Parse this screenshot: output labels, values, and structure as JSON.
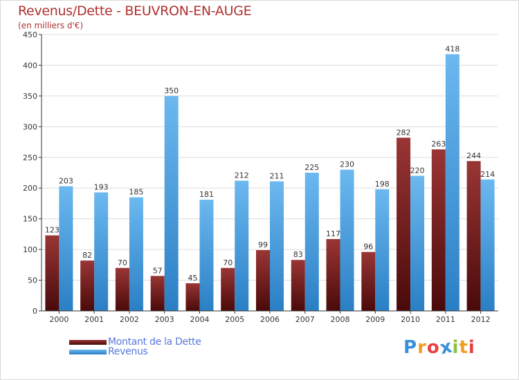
{
  "chart_data": {
    "type": "bar",
    "title": "Revenus/Dette - BEUVRON-EN-AUGE",
    "subtitle": "(en milliers d'€)",
    "categories": [
      "2000",
      "2001",
      "2002",
      "2003",
      "2004",
      "2005",
      "2006",
      "2007",
      "2008",
      "2009",
      "2010",
      "2011",
      "2012"
    ],
    "series": [
      {
        "name": "Montant de la Dette",
        "color": "#7a1f1f",
        "values": [
          123,
          82,
          70,
          57,
          45,
          70,
          99,
          83,
          117,
          96,
          282,
          263,
          244
        ]
      },
      {
        "name": "Revenus",
        "color": "#3a95dc",
        "values": [
          203,
          193,
          185,
          350,
          181,
          212,
          211,
          225,
          230,
          198,
          220,
          418,
          214
        ]
      }
    ],
    "ylim": [
      0,
      450
    ],
    "yticks": [
      0,
      50,
      100,
      150,
      200,
      250,
      300,
      350,
      400,
      450
    ],
    "grid": true,
    "legend_position": "bottom-left"
  },
  "logo": {
    "text": "Proxiti",
    "letters": [
      {
        "ch": "P",
        "color": "#3a8fd8"
      },
      {
        "ch": "r",
        "color": "#f0a020"
      },
      {
        "ch": "o",
        "color": "#e84040"
      },
      {
        "ch": "x",
        "color": "#3a8fd8"
      },
      {
        "ch": "i",
        "color": "#8cc040"
      },
      {
        "ch": "t",
        "color": "#f0a020"
      },
      {
        "ch": "i",
        "color": "#e84040"
      }
    ]
  }
}
